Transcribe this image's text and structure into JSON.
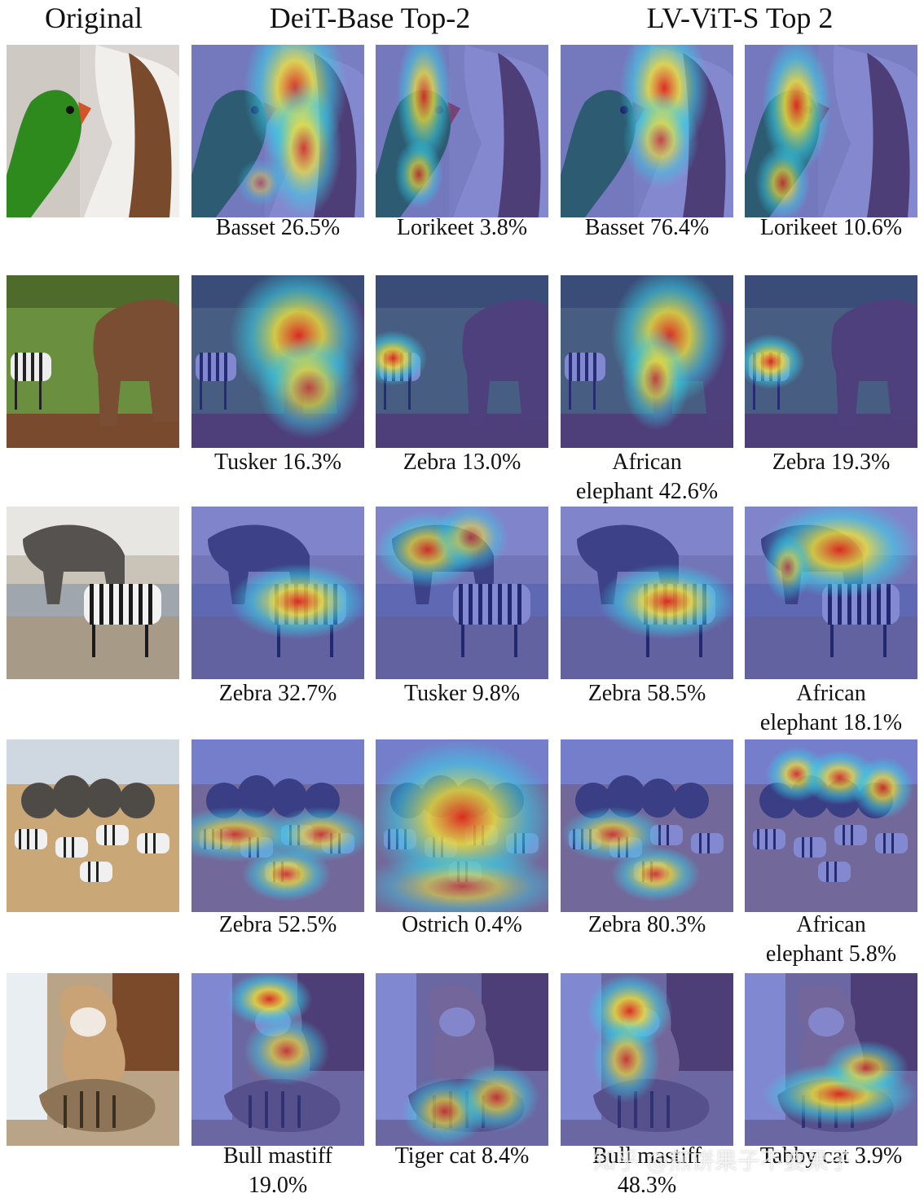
{
  "headers": {
    "original": "Original",
    "deit": "DeiT-Base Top-2",
    "lvvit": "LV-ViT-S Top 2"
  },
  "rows": [
    {
      "scene": "parrot-and-dog",
      "captions": [
        "Basset  26.5%",
        "Lorikeet 3.8%",
        "Basset 76.4%",
        "Lorikeet 10.6%"
      ]
    },
    {
      "scene": "zebra-and-elephant",
      "captions": [
        "Tusker 16.3%",
        "Zebra 13.0%",
        "African\nelephant 42.6%",
        "Zebra 19.3%"
      ]
    },
    {
      "scene": "elephant-and-zebra-waterhole",
      "captions": [
        "Zebra 32.7%",
        "Tusker 9.8%",
        "Zebra 58.5%",
        "African\nelephant 18.1%"
      ]
    },
    {
      "scene": "herd-of-elephants-and-zebras",
      "captions": [
        "Zebra 52.5%",
        "Ostrich 0.4%",
        "Zebra 80.3%",
        "African\nelephant 5.8%"
      ]
    },
    {
      "scene": "bulldog-and-tabby-cat",
      "captions": [
        "Bull mastiff\n19.0%",
        "Tiger cat 8.4%",
        "Bull mastiff\n48.3%",
        "Tabby cat 3.9%"
      ]
    }
  ],
  "watermark": "知乎 @煎饼果子不要果子",
  "colors": {
    "overlay_blue": "#2a34b8",
    "heat_red": "#e0281e",
    "heat_yellow": "#f0e33a",
    "heat_cyan": "#38d0e8"
  }
}
